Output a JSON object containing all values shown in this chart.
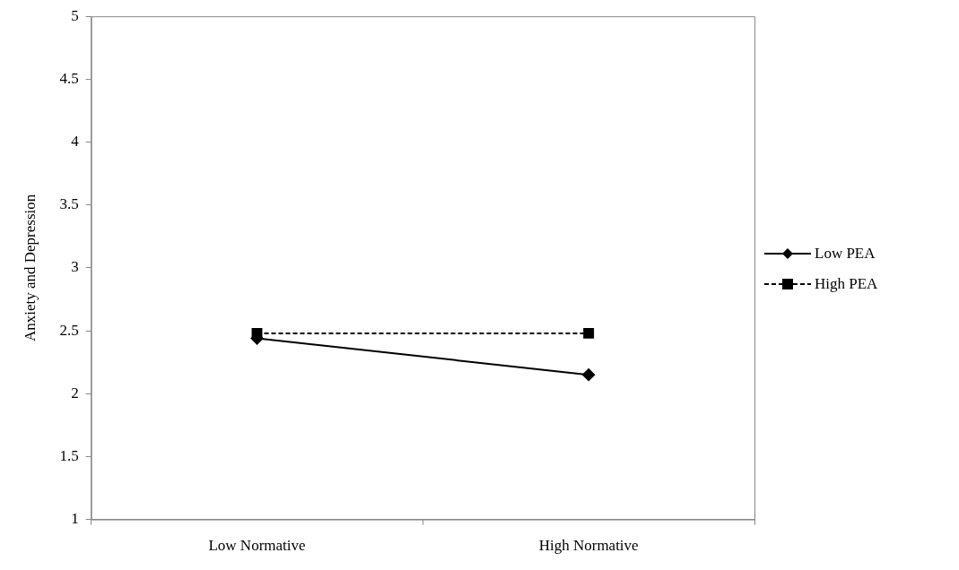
{
  "chart_data": {
    "type": "line",
    "ylabel": "Anxiety and Depression",
    "categories": [
      "Low Normative",
      "High Normative"
    ],
    "series": [
      {
        "name": "Low PEA",
        "color": "#000000",
        "values": [
          2.44,
          2.15
        ],
        "marker": "diamond",
        "line_style": "solid"
      },
      {
        "name": "High PEA",
        "color": "#000000",
        "values": [
          2.48,
          2.48
        ],
        "marker": "square",
        "line_style": "dashed"
      }
    ],
    "ylim": [
      1,
      5
    ],
    "yticks": [
      1,
      1.5,
      2,
      2.5,
      3,
      3.5,
      4,
      4.5,
      5
    ],
    "grid": false,
    "legend": "right"
  }
}
